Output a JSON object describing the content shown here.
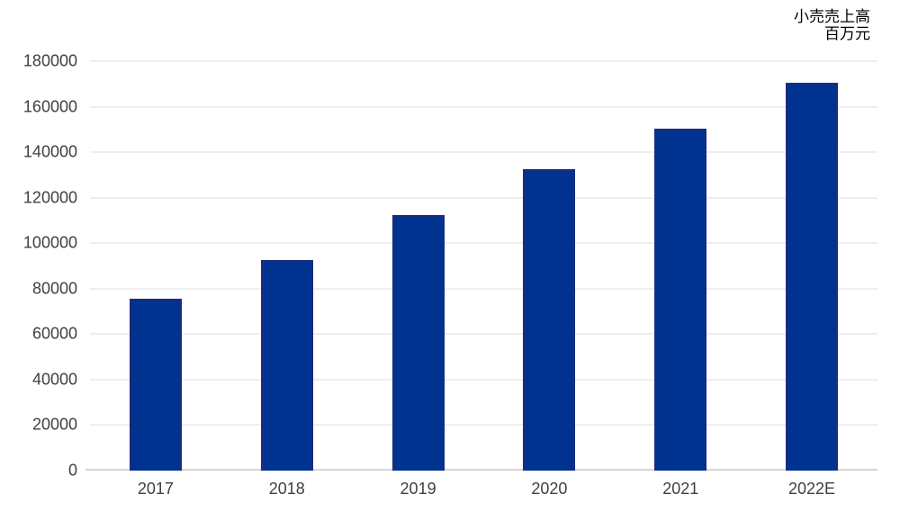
{
  "page": {
    "background": "#ffffff"
  },
  "chart_data": {
    "type": "bar",
    "title": "小売売上高",
    "unit_label": "百万元",
    "categories": [
      "2017",
      "2018",
      "2019",
      "2020",
      "2021",
      "2022E"
    ],
    "values": [
      75500,
      92500,
      112500,
      132500,
      150500,
      170500
    ],
    "ylim": [
      0,
      180000
    ],
    "ytick_step": 20000,
    "ytick_labels": [
      "0",
      "20000",
      "40000",
      "60000",
      "80000",
      "100000",
      "120000",
      "140000",
      "160000",
      "180000"
    ],
    "xlabel": "",
    "ylabel": "",
    "grid": true,
    "legend": "none",
    "bar_color": "#00338f",
    "bar_border_color": "#1c2b7e",
    "gridline_color": "#dcdcdc",
    "axis_line_color": "#d6d6d6",
    "label_color": "#404040",
    "title_color": "#000000"
  }
}
